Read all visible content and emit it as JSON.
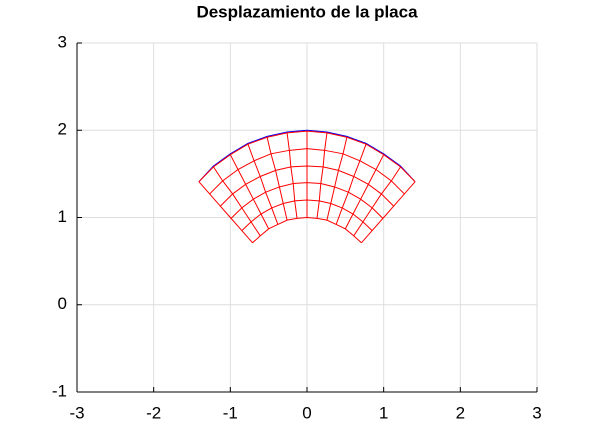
{
  "chart_data": {
    "type": "mesh",
    "title": "Desplazamiento de la placa",
    "xlim": [
      -3,
      3
    ],
    "ylim": [
      -1,
      3
    ],
    "xticks": [
      -3,
      -2,
      -1,
      0,
      1,
      2,
      3
    ],
    "yticks": [
      -1,
      0,
      1,
      2,
      3
    ],
    "grid": true,
    "series": [
      {
        "color": "#0000ff",
        "x": [
          1.41,
          1.22,
          1,
          0.77,
          0.52,
          0.26,
          0,
          -0.26,
          -0.52,
          -0.77,
          -1,
          -1.22,
          -1.41
        ],
        "y": [
          1.41,
          1.59,
          1.73,
          1.85,
          1.93,
          1.98,
          2,
          1.98,
          1.93,
          1.85,
          1.73,
          1.59,
          1.41
        ]
      }
    ],
    "mesh": {
      "color": "#ff0000",
      "arcs": [
        {
          "x": [
            0.71,
            0.61,
            0.5,
            0.38,
            0.26,
            0.13,
            0,
            -0.13,
            -0.26,
            -0.38,
            -0.5,
            -0.61,
            -0.71
          ],
          "y": [
            0.71,
            0.79,
            0.87,
            0.92,
            0.97,
            0.99,
            1,
            0.99,
            0.97,
            0.92,
            0.87,
            0.79,
            0.71
          ]
        },
        {
          "x": [
            0.85,
            0.73,
            0.6,
            0.46,
            0.31,
            0.16,
            0,
            -0.16,
            -0.31,
            -0.46,
            -0.6,
            -0.73,
            -0.85
          ],
          "y": [
            0.85,
            0.95,
            1.04,
            1.11,
            1.16,
            1.19,
            1.2,
            1.19,
            1.16,
            1.11,
            1.04,
            0.95,
            0.85
          ]
        },
        {
          "x": [
            0.99,
            0.85,
            0.7,
            0.54,
            0.36,
            0.18,
            0,
            -0.18,
            -0.36,
            -0.54,
            -0.7,
            -0.85,
            -0.99
          ],
          "y": [
            0.99,
            1.11,
            1.21,
            1.29,
            1.35,
            1.39,
            1.4,
            1.39,
            1.35,
            1.29,
            1.21,
            1.11,
            0.99
          ]
        },
        {
          "x": [
            1.13,
            0.97,
            0.8,
            0.61,
            0.41,
            0.21,
            0,
            -0.21,
            -0.41,
            -0.61,
            -0.8,
            -0.97,
            -1.13
          ],
          "y": [
            1.13,
            1.27,
            1.38,
            1.47,
            1.54,
            1.58,
            1.59,
            1.58,
            1.54,
            1.47,
            1.38,
            1.27,
            1.13
          ]
        },
        {
          "x": [
            1.27,
            1.1,
            0.9,
            0.69,
            0.47,
            0.23,
            0,
            -0.23,
            -0.47,
            -0.69,
            -0.9,
            -1.1,
            -1.27
          ],
          "y": [
            1.27,
            1.42,
            1.55,
            1.65,
            1.73,
            1.77,
            1.79,
            1.77,
            1.73,
            1.65,
            1.55,
            1.42,
            1.27
          ]
        },
        {
          "x": [
            1.41,
            1.22,
            1,
            0.77,
            0.52,
            0.26,
            0,
            -0.26,
            -0.52,
            -0.77,
            -1,
            -1.22,
            -1.41
          ],
          "y": [
            1.41,
            1.58,
            1.72,
            1.84,
            1.92,
            1.97,
            1.99,
            1.97,
            1.92,
            1.84,
            1.72,
            1.58,
            1.41
          ]
        }
      ]
    }
  }
}
